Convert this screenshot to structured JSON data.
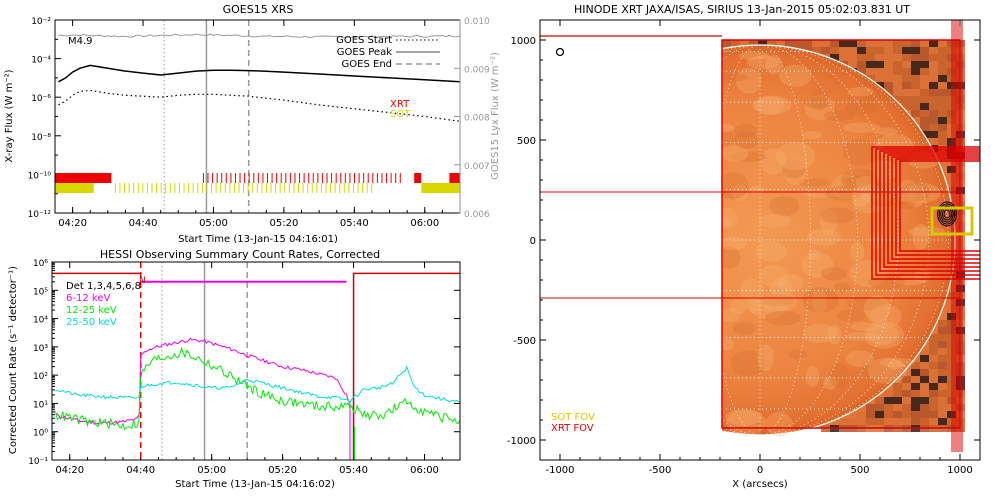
{
  "chart_data": [
    {
      "type": "line",
      "title": "GOES15 XRS",
      "xlabel": "Start Time (13-Jan-15 04:16:01)",
      "ylabel": "X-ray Flux (W m⁻²)",
      "ylabel_right": "GOES15 Lyx Flux (W m⁻²)",
      "x_ticks": [
        "04:20",
        "04:40",
        "05:00",
        "05:20",
        "05:40",
        "06:00"
      ],
      "xlim_minutes": [
        255,
        370
      ],
      "y_ticks": [
        "10⁻²",
        "10⁻⁴",
        "10⁻⁶",
        "10⁻⁸",
        "10⁻¹⁰",
        "10⁻¹²"
      ],
      "y_tick_exp": [
        -2,
        -4,
        -6,
        -8,
        -10,
        -12
      ],
      "ylim_log10": [
        -12,
        -2
      ],
      "y2_ticks": [
        "0.010",
        "0.009",
        "0.008",
        "0.007",
        "0.006"
      ],
      "y2_tick_values": [
        0.01,
        0.009,
        0.008,
        0.007,
        0.006
      ],
      "ylim2": [
        0.006,
        0.01
      ],
      "flare_class": "M4.9",
      "vlines": [
        {
          "name": "GOES Start",
          "x_minutes": 286,
          "style": "dotted"
        },
        {
          "name": "GOES Peak",
          "x_minutes": 298,
          "style": "solid"
        },
        {
          "name": "GOES End",
          "x_minutes": 310,
          "style": "dashed"
        }
      ],
      "legend": [
        "GOES Start",
        "GOES Peak",
        "GOES End"
      ],
      "legend_placement": "top-right",
      "labels": {
        "xrt": "XRT",
        "sot": "SOT"
      },
      "colors": {
        "xrt": "#ee0000",
        "sot": "#d8d800",
        "lyx": "#999999"
      },
      "series": [
        {
          "x": [
            256,
            258,
            260,
            262,
            265,
            270,
            275,
            280,
            285,
            290,
            295,
            300,
            305,
            310,
            315,
            320,
            330,
            340,
            350,
            360,
            370
          ],
          "y_log10": [
            -5.2,
            -5.0,
            -4.7,
            -4.5,
            -4.35,
            -4.5,
            -4.65,
            -4.75,
            -4.85,
            -4.75,
            -4.65,
            -4.6,
            -4.6,
            -4.62,
            -4.66,
            -4.7,
            -4.8,
            -4.9,
            -5.0,
            -5.1,
            -5.2
          ]
        },
        {
          "x": [
            256,
            258,
            260,
            262,
            265,
            270,
            275,
            280,
            285,
            290,
            295,
            300,
            305,
            310,
            315,
            320,
            330,
            340,
            350,
            360,
            370
          ],
          "y_log10": [
            -6.4,
            -6.2,
            -5.9,
            -5.7,
            -5.65,
            -5.8,
            -5.9,
            -5.95,
            -6.0,
            -5.9,
            -5.85,
            -5.85,
            -5.9,
            -5.95,
            -6.05,
            -6.15,
            -6.4,
            -6.6,
            -6.8,
            -7.0,
            -7.25
          ]
        },
        {
          "x": [
            256,
            260,
            265,
            270,
            275,
            280,
            285,
            290,
            295,
            300,
            305,
            310,
            315,
            320,
            330,
            340,
            350,
            360,
            370
          ],
          "y_value": [
            0.00968,
            0.00969,
            0.00968,
            0.00967,
            0.00966,
            0.00967,
            0.00968,
            0.00969,
            0.0097,
            0.00969,
            0.00968,
            0.00967,
            0.00966,
            0.00966,
            0.00965,
            0.00965,
            0.00966,
            0.00966,
            0.00967
          ]
        }
      ],
      "coverage": [
        {
          "name": "XRT",
          "intervals": [
            [
              255,
              271
            ],
            [
              297,
              354
            ],
            [
              357,
              359
            ],
            [
              367,
              370
            ]
          ]
        },
        {
          "name": "SOT",
          "intervals": [
            [
              255,
              266
            ],
            [
              272,
              345
            ],
            [
              359,
              370
            ]
          ]
        }
      ]
    },
    {
      "type": "line",
      "title": "HESSI Observing Summary Count Rates, Corrected",
      "xlabel": "Start Time (13-Jan-15 04:16:02)",
      "ylabel": "Corrected Count Rate (s⁻¹ detector⁻¹)",
      "x_ticks": [
        "04:20",
        "04:40",
        "05:00",
        "05:20",
        "05:40",
        "06:00"
      ],
      "xlim_minutes": [
        255,
        370
      ],
      "y_ticks": [
        "10⁶",
        "10⁵",
        "10⁴",
        "10³",
        "10²",
        "10¹",
        "10⁰",
        "10⁻¹"
      ],
      "y_tick_exp": [
        6,
        5,
        4,
        3,
        2,
        1,
        0,
        -1
      ],
      "ylim_log10": [
        -1,
        6
      ],
      "legend": [
        "Det 1,3,4,5,6,8",
        "6-12 keV",
        "12-25 keV",
        "25-50 keV"
      ],
      "legend_placement": "top-left",
      "n_marker": "N",
      "vlines": [
        {
          "x_minutes": 280,
          "style": "dashed",
          "color": "#ee0000"
        },
        {
          "x_minutes": 286,
          "style": "dotted"
        },
        {
          "x_minutes": 298,
          "style": "solid"
        },
        {
          "x_minutes": 310,
          "style": "dashed"
        },
        {
          "x_minutes": 340,
          "style": "solid",
          "color": "#cc0000"
        }
      ],
      "colors": {
        "6-12 keV": "#ee00ee",
        "12-25 keV": "#00ee00",
        "25-50 keV": "#00dddd",
        "night": "#cc0000"
      },
      "series": [
        {
          "name": "6-12 keV",
          "x": [
            256,
            262,
            268,
            275,
            279,
            279.6,
            280,
            282,
            286,
            290,
            294,
            298,
            302,
            306,
            310,
            315,
            320,
            325,
            330,
            335,
            338,
            339
          ],
          "y_log10": [
            0.6,
            0.4,
            0.3,
            0.35,
            0.45,
            0.6,
            2.7,
            2.9,
            3.05,
            3.15,
            3.25,
            3.2,
            3.05,
            2.9,
            2.7,
            2.5,
            2.3,
            2.2,
            2.05,
            1.9,
            1.3,
            1.0
          ],
          "flat": {
            "x": [
              280,
              338
            ],
            "y_log10": 5.3
          }
        },
        {
          "name": "12-25 keV",
          "x": [
            256,
            260,
            265,
            270,
            275,
            279.5,
            280,
            283,
            288,
            292,
            296,
            300,
            305,
            310,
            315,
            320,
            325,
            330,
            335,
            339,
            343,
            347,
            350,
            353,
            355,
            358,
            362,
            366,
            370
          ],
          "y_log10": [
            0.6,
            0.5,
            0.35,
            0.3,
            0.2,
            0.3,
            2.0,
            2.5,
            2.7,
            2.8,
            2.6,
            2.35,
            2.0,
            1.6,
            1.3,
            1.1,
            1.0,
            0.9,
            0.9,
            0.9,
            0.6,
            0.55,
            0.7,
            0.9,
            1.05,
            0.85,
            0.6,
            0.5,
            0.4
          ]
        },
        {
          "name": "25-50 keV",
          "x": [
            256,
            262,
            268,
            274,
            279.5,
            280,
            285,
            290,
            295,
            300,
            305,
            310,
            315,
            320,
            325,
            330,
            335,
            339,
            343,
            347,
            351,
            353,
            355,
            357,
            360,
            365,
            370
          ],
          "y_log10": [
            1.5,
            1.3,
            1.25,
            1.2,
            1.2,
            1.6,
            1.7,
            1.75,
            1.65,
            1.55,
            1.55,
            1.85,
            1.7,
            1.55,
            1.4,
            1.25,
            1.2,
            1.1,
            1.5,
            1.55,
            1.7,
            2.0,
            2.25,
            1.6,
            1.3,
            1.15,
            1.05
          ]
        }
      ],
      "night_level_log10": 5.6
    },
    {
      "type": "heatmap",
      "title": "HINODE XRT JAXA/ISAS, SIRIUS 13-Jan-2015 05:02:03.831 UT",
      "xlabel": "X (arcsecs)",
      "x_ticks": [
        "-1000",
        "-500",
        "0",
        "500",
        "1000"
      ],
      "x_tick_values": [
        -1000,
        -500,
        0,
        500,
        1000
      ],
      "xlim": [
        -1100,
        1100
      ],
      "y_ticks": [
        "1000",
        "500",
        "0",
        "-500",
        "-1000"
      ],
      "y_tick_values": [
        1000,
        500,
        0,
        -500,
        -1000
      ],
      "ylim": [
        -1100,
        1100
      ],
      "sun_radius_arcsec": 975,
      "xrt_fov_box": [
        -190,
        1000,
        1000,
        -940
      ],
      "sot_fov_box": [
        860,
        950,
        200,
        130
      ],
      "legend": [
        "SOT FOV",
        "XRT FOV"
      ],
      "legend_placement": "bottom-left",
      "colors": {
        "sot": "#d8c800",
        "xrt": "#dd0000"
      }
    }
  ]
}
